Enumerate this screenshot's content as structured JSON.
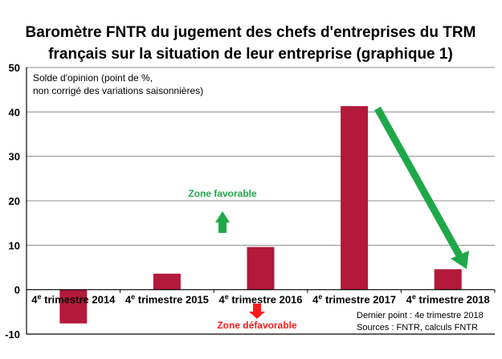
{
  "chart_data": {
    "type": "bar",
    "title": [
      "Baromètre FNTR du jugement des chefs d'entreprises du TRM",
      "français sur la situation de leur entreprise (graphique 1)"
    ],
    "ylabel": [
      "Solde d'opinion (point de %,",
      "non corrigé des variations saisonnières)"
    ],
    "xlabel": "",
    "categories": [
      "4e trimestre 2014",
      "4e trimestre 2015",
      "4e trimestre 2016",
      "4e trimestre 2017",
      "4e trimestre 2018"
    ],
    "values": [
      -7.6,
      3.6,
      9.6,
      41.3,
      4.6
    ],
    "ylim": [
      -10,
      50
    ],
    "yticks": [
      -10,
      0,
      10,
      20,
      30,
      40,
      50
    ],
    "grid": true,
    "bar_color": "#B3193A",
    "annotations": {
      "favorable": "Zone favorable",
      "unfavorable": "Zone défavorable",
      "last_point": "Dernier point : 4e trimestre 2018",
      "sources": "Sources : FNTR, calculs FNTR"
    },
    "colors": {
      "favorable": "#1FA84A",
      "unfavorable": "#FF1A1A",
      "trend_arrow": "#1FA84A"
    }
  }
}
